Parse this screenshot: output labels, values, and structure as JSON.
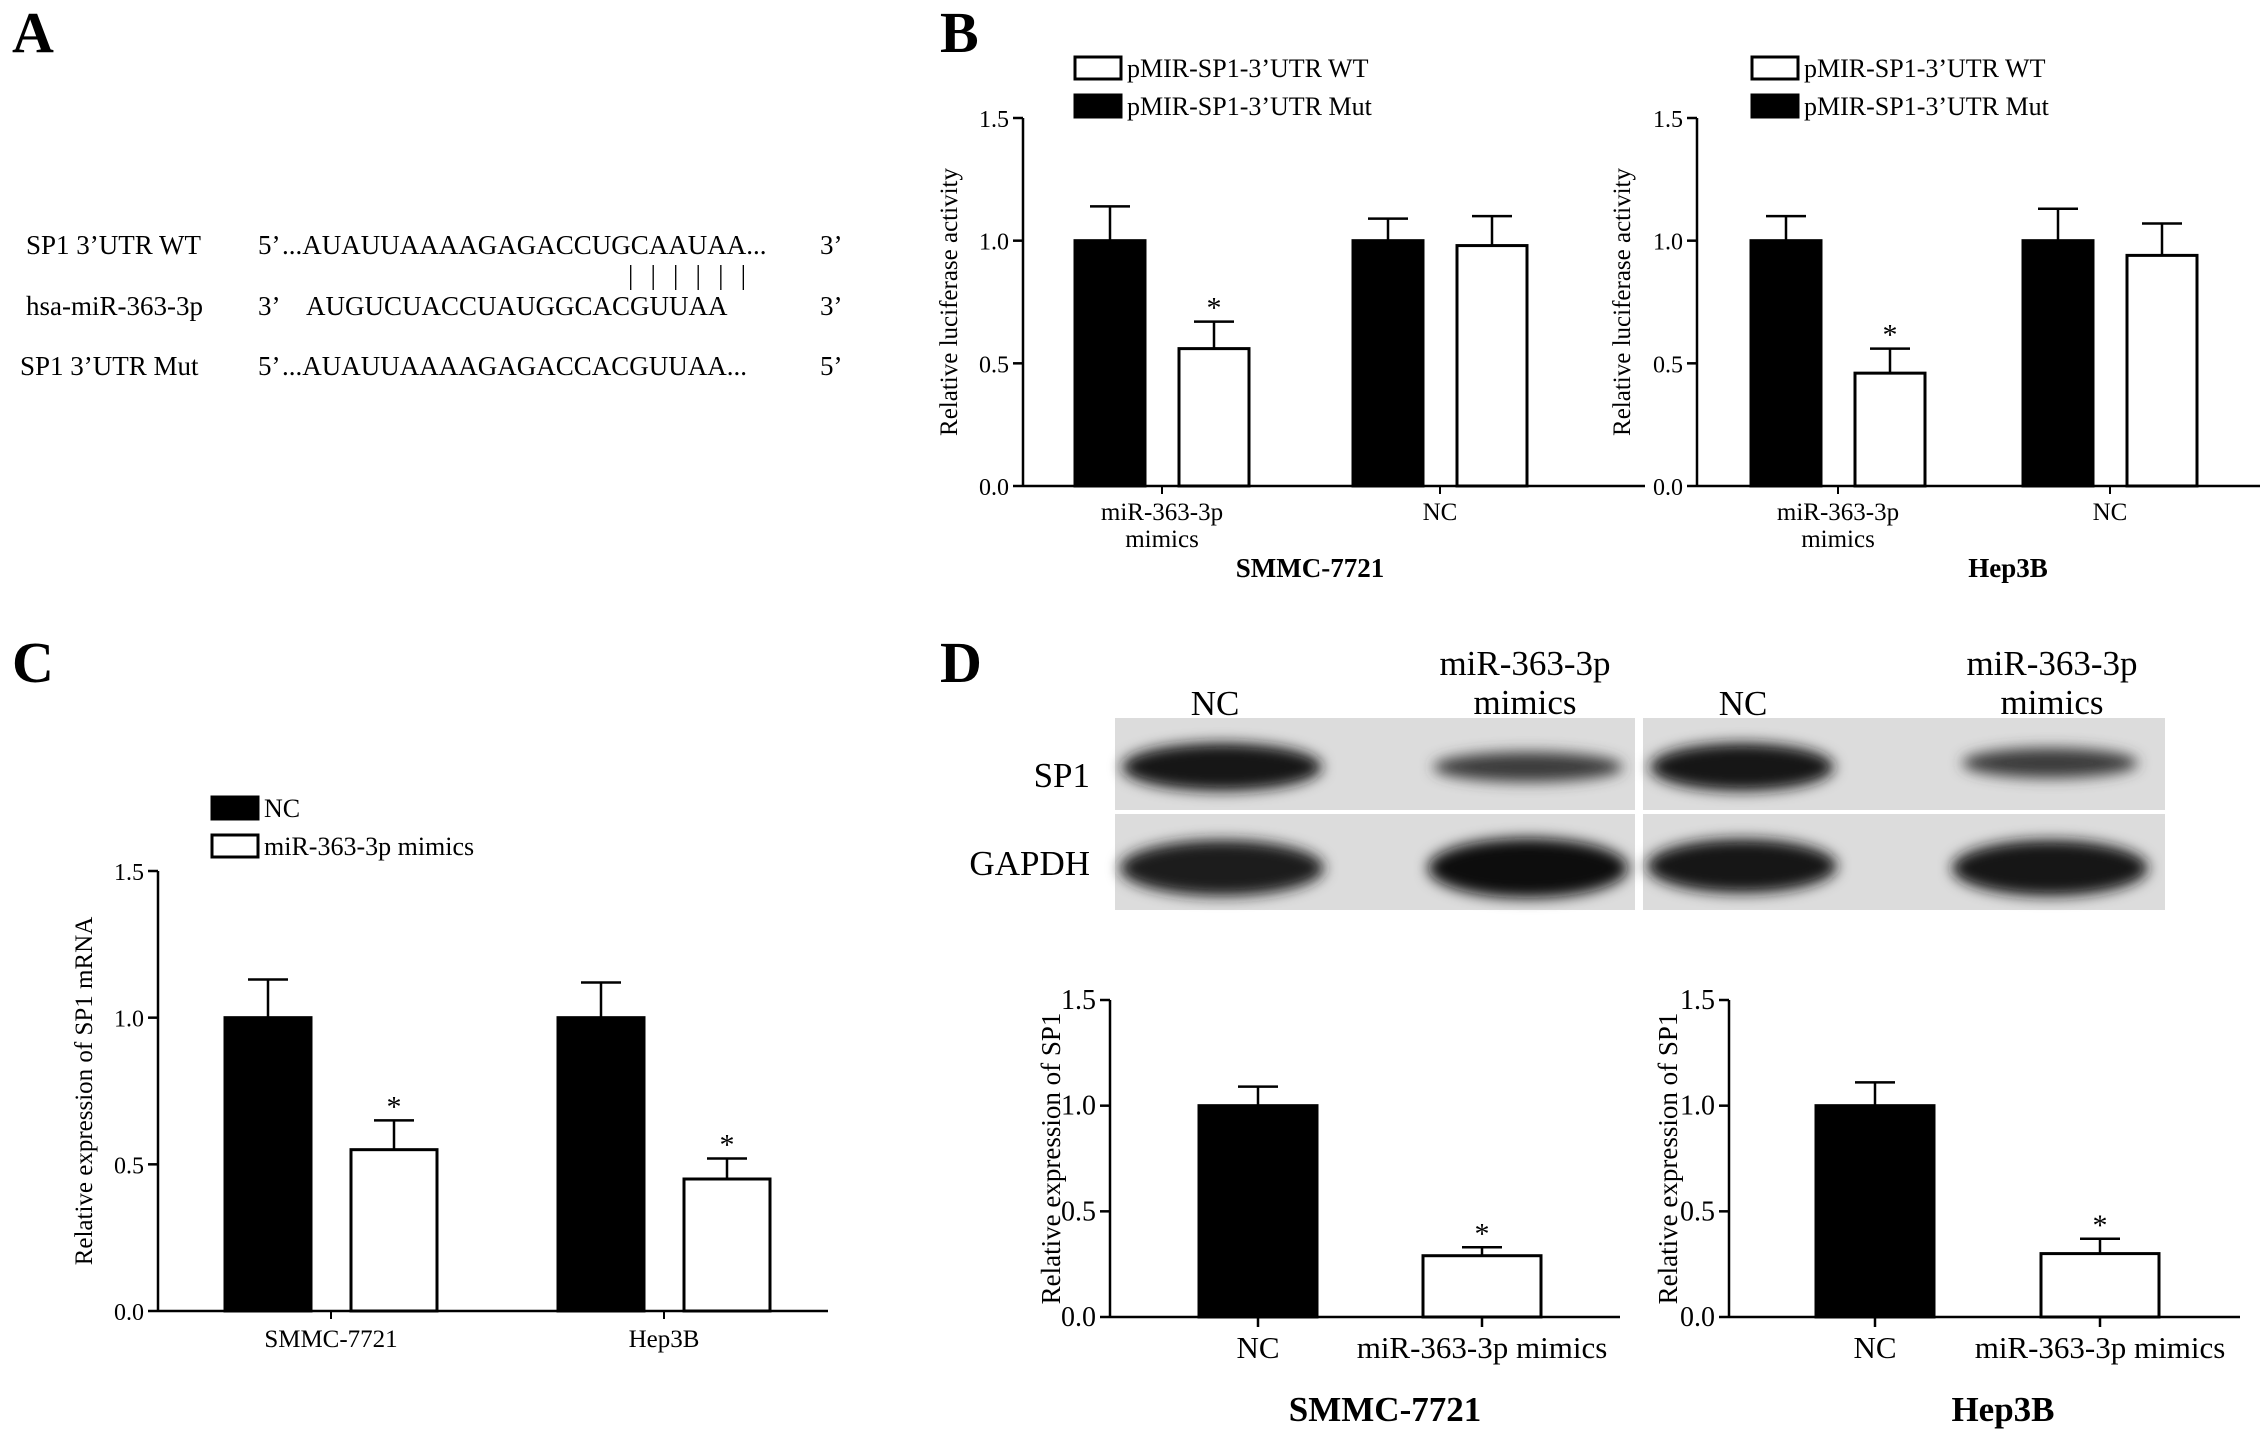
{
  "panels": {
    "A": {
      "letter": "A",
      "rows": [
        {
          "label": "SP1 3’UTR WT",
          "prefix": "5’",
          "sequence": "...AUAUUAAAAGAGACCUGCAAUAA...",
          "suffix": "3’"
        },
        {
          "label": "hsa-miR-363-3p",
          "prefix": "3’",
          "sequence": "AUGUCUACCUAUGGCACGUUAA",
          "suffix": "3’"
        },
        {
          "label": "SP1 3’UTR Mut",
          "prefix": "5’",
          "sequence": "...AUAUUAAAAGAGACCACGUUAA...",
          "suffix": "5’"
        }
      ],
      "pairing_marks": "||||||"
    },
    "B": {
      "letter": "B"
    },
    "C": {
      "letter": "C"
    },
    "D": {
      "letter": "D",
      "blot": {
        "lane_headers": [
          "NC",
          "miR-363-3p\nmimics",
          "NC",
          "miR-363-3p\nmimics"
        ],
        "row_labels": [
          "SP1",
          "GAPDH"
        ]
      }
    }
  },
  "chart_data": [
    {
      "id": "B-left",
      "type": "bar",
      "title": "",
      "group_label": "SMMC-7721",
      "categories": [
        "miR-363-3p\nmimics",
        "NC"
      ],
      "series": [
        {
          "name": "pMIR-SP1-3’UTR WT",
          "color": "#ffffff",
          "values": [
            0.56,
            0.98
          ],
          "errors": [
            0.11,
            0.12
          ]
        },
        {
          "name": "pMIR-SP1-3’UTR Mut",
          "color": "#000000",
          "values": [
            1.0,
            1.0
          ],
          "errors": [
            0.14,
            0.09
          ]
        }
      ],
      "bar_order": [
        "pMIR-SP1-3’UTR Mut",
        "pMIR-SP1-3’UTR WT"
      ],
      "significance": [
        {
          "category": 0,
          "series": "pMIR-SP1-3’UTR WT",
          "mark": "*"
        }
      ],
      "ylabel": "Relative luciferase activity",
      "ylim": [
        0,
        1.5
      ],
      "yticks": [
        "0.0",
        "0.5",
        "1.0",
        "1.5"
      ],
      "legend": "top"
    },
    {
      "id": "B-right",
      "type": "bar",
      "title": "",
      "group_label": "Hep3B",
      "categories": [
        "miR-363-3p\nmimics",
        "NC"
      ],
      "series": [
        {
          "name": "pMIR-SP1-3’UTR WT",
          "color": "#ffffff",
          "values": [
            0.46,
            0.94
          ],
          "errors": [
            0.1,
            0.13
          ]
        },
        {
          "name": "pMIR-SP1-3’UTR Mut",
          "color": "#000000",
          "values": [
            1.0,
            1.0
          ],
          "errors": [
            0.1,
            0.13
          ]
        }
      ],
      "bar_order": [
        "pMIR-SP1-3’UTR Mut",
        "pMIR-SP1-3’UTR WT"
      ],
      "significance": [
        {
          "category": 0,
          "series": "pMIR-SP1-3’UTR WT",
          "mark": "*"
        }
      ],
      "ylabel": "Relative luciferase activity",
      "ylim": [
        0,
        1.5
      ],
      "yticks": [
        "0.0",
        "0.5",
        "1.0",
        "1.5"
      ],
      "legend": "top"
    },
    {
      "id": "C",
      "type": "bar",
      "title": "",
      "categories": [
        "SMMC-7721",
        "Hep3B"
      ],
      "series": [
        {
          "name": "NC",
          "color": "#000000",
          "values": [
            1.0,
            1.0
          ],
          "errors": [
            0.13,
            0.12
          ]
        },
        {
          "name": "miR-363-3p mimics",
          "color": "#ffffff",
          "values": [
            0.55,
            0.45
          ],
          "errors": [
            0.1,
            0.07
          ]
        }
      ],
      "bar_order": [
        "NC",
        "miR-363-3p mimics"
      ],
      "significance": [
        {
          "category": 0,
          "series": "miR-363-3p mimics",
          "mark": "*"
        },
        {
          "category": 1,
          "series": "miR-363-3p mimics",
          "mark": "*"
        }
      ],
      "ylabel": "Relative expression of SP1 mRNA",
      "ylim": [
        0,
        1.5
      ],
      "yticks": [
        "0.0",
        "0.5",
        "1.0",
        "1.5"
      ],
      "legend": "top-left"
    },
    {
      "id": "D-left",
      "type": "bar",
      "title": "",
      "group_label": "SMMC-7721",
      "categories": [
        "NC",
        "miR-363-3p mimics"
      ],
      "values": [
        1.0,
        0.29
      ],
      "errors": [
        0.09,
        0.04
      ],
      "colors": [
        "#000000",
        "#ffffff"
      ],
      "significance": [
        {
          "category": 1,
          "mark": "*"
        }
      ],
      "ylabel": "Relative expression of SP1",
      "ylim": [
        0,
        1.5
      ],
      "yticks": [
        "0.0",
        "0.5",
        "1.0",
        "1.5"
      ]
    },
    {
      "id": "D-right",
      "type": "bar",
      "title": "",
      "group_label": "Hep3B",
      "categories": [
        "NC",
        "miR-363-3p mimics"
      ],
      "values": [
        1.0,
        0.3
      ],
      "errors": [
        0.11,
        0.07
      ],
      "colors": [
        "#000000",
        "#ffffff"
      ],
      "significance": [
        {
          "category": 1,
          "mark": "*"
        }
      ],
      "ylabel": "Relative expression of SP1",
      "ylim": [
        0,
        1.5
      ],
      "yticks": [
        "0.0",
        "0.5",
        "1.0",
        "1.5"
      ]
    }
  ]
}
